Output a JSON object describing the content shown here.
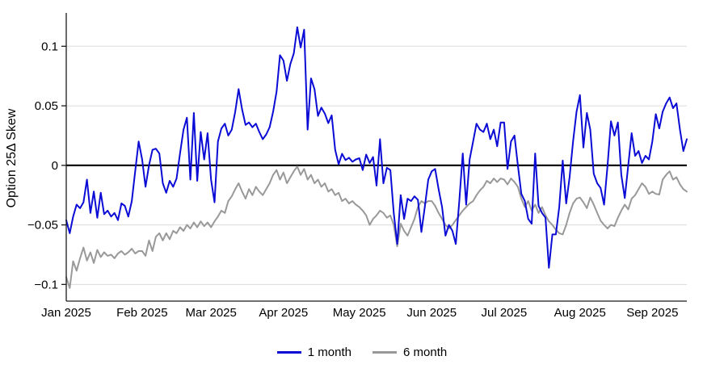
{
  "chart_data": {
    "type": "line",
    "title": "",
    "xlabel": "",
    "ylabel": "Option 25Δ Skew",
    "grid": "horizontal-light",
    "zero_line": true,
    "legend_position": "bottom-center",
    "background": "#ffffff",
    "grid_color": "#dcdcdc",
    "axis_color": "#1a1a1a",
    "zero_line_color": "#000000",
    "ylim": [
      -0.114,
      0.128
    ],
    "y_ticks": [
      0.1,
      0.05,
      0,
      -0.05,
      -0.1
    ],
    "y_tick_labels": [
      "0.1",
      "0.05",
      "0",
      "−0.05",
      "−0.1"
    ],
    "x_tick_labels": [
      "Jan 2025",
      "Feb 2025",
      "Mar 2025",
      "Apr 2025",
      "May 2025",
      "Jun 2025",
      "Jul 2025",
      "Aug 2025",
      "Sep 2025"
    ],
    "x_tick_indices": [
      0,
      22,
      42,
      63,
      85,
      106,
      127,
      149,
      170
    ],
    "n_points": 181,
    "series": [
      {
        "name": "1 month",
        "color": "#0b0bd6",
        "values": [
          -0.046,
          -0.057,
          -0.043,
          -0.033,
          -0.036,
          -0.031,
          -0.012,
          -0.04,
          -0.022,
          -0.044,
          -0.023,
          -0.041,
          -0.038,
          -0.043,
          -0.04,
          -0.046,
          -0.032,
          -0.034,
          -0.043,
          -0.03,
          -0.005,
          0.02,
          0.005,
          -0.018,
          0.0,
          0.013,
          0.014,
          0.01,
          -0.015,
          -0.023,
          -0.013,
          -0.018,
          -0.011,
          0.01,
          0.03,
          0.04,
          -0.012,
          0.044,
          -0.013,
          0.028,
          0.005,
          0.027,
          -0.012,
          -0.031,
          0.02,
          0.031,
          0.035,
          0.025,
          0.03,
          0.045,
          0.064,
          0.047,
          0.034,
          0.036,
          0.032,
          0.035,
          0.028,
          0.022,
          0.026,
          0.032,
          0.045,
          0.062,
          0.0925,
          0.088,
          0.071,
          0.085,
          0.094,
          0.116,
          0.099,
          0.114,
          0.03,
          0.073,
          0.064,
          0.0415,
          0.0485,
          0.0435,
          0.0355,
          0.042,
          0.013,
          0.001,
          0.0097,
          0.0044,
          0.0064,
          0.003,
          0.005,
          0.006,
          -0.004,
          0.009,
          0.002,
          0.007,
          -0.017,
          0.022,
          -0.015,
          -0.002,
          -0.004,
          -0.04,
          -0.066,
          -0.025,
          -0.045,
          -0.028,
          -0.03,
          -0.026,
          -0.029,
          -0.056,
          -0.035,
          -0.012,
          -0.005,
          -0.003,
          -0.02,
          -0.035,
          -0.059,
          -0.05,
          -0.055,
          -0.066,
          -0.03,
          0.01,
          -0.033,
          0.005,
          0.02,
          0.035,
          0.03,
          0.028,
          0.035,
          0.022,
          0.03,
          0.016,
          0.036,
          0.036,
          -0.003,
          0.02,
          0.025,
          0.0,
          -0.024,
          -0.03,
          -0.045,
          -0.049,
          0.01,
          -0.034,
          -0.04,
          -0.044,
          -0.086,
          -0.058,
          -0.058,
          -0.035,
          0.004,
          -0.032,
          -0.01,
          0.02,
          0.045,
          0.059,
          0.015,
          0.044,
          0.03,
          -0.007,
          -0.015,
          -0.019,
          -0.033,
          0.0,
          0.037,
          0.025,
          0.036,
          -0.008,
          -0.0275,
          0.0,
          0.027,
          0.008,
          0.012,
          0.002,
          0.008,
          0.005,
          0.02,
          0.043,
          0.031,
          0.045,
          0.052,
          0.057,
          0.048,
          0.052,
          0.03,
          0.012,
          0.022
        ]
      },
      {
        "name": "6 month",
        "color": "#999999",
        "values": [
          -0.094,
          -0.103,
          -0.0805,
          -0.0885,
          -0.078,
          -0.069,
          -0.08,
          -0.073,
          -0.082,
          -0.071,
          -0.077,
          -0.073,
          -0.076,
          -0.075,
          -0.078,
          -0.074,
          -0.072,
          -0.075,
          -0.073,
          -0.07,
          -0.074,
          -0.072,
          -0.072,
          -0.076,
          -0.063,
          -0.072,
          -0.06,
          -0.057,
          -0.063,
          -0.057,
          -0.062,
          -0.055,
          -0.057,
          -0.052,
          -0.055,
          -0.05,
          -0.053,
          -0.048,
          -0.052,
          -0.047,
          -0.051,
          -0.048,
          -0.052,
          -0.047,
          -0.043,
          -0.038,
          -0.04,
          -0.03,
          -0.026,
          -0.02,
          -0.015,
          -0.022,
          -0.028,
          -0.02,
          -0.025,
          -0.018,
          -0.022,
          -0.025,
          -0.02,
          -0.015,
          -0.008,
          -0.004,
          -0.012,
          -0.006,
          -0.015,
          -0.01,
          -0.005,
          -0.001,
          -0.008,
          -0.003,
          -0.012,
          -0.008,
          -0.015,
          -0.012,
          -0.018,
          -0.015,
          -0.022,
          -0.02,
          -0.025,
          -0.023,
          -0.03,
          -0.028,
          -0.032,
          -0.03,
          -0.033,
          -0.035,
          -0.038,
          -0.042,
          -0.05,
          -0.045,
          -0.042,
          -0.038,
          -0.04,
          -0.044,
          -0.042,
          -0.05,
          -0.068,
          -0.049,
          -0.055,
          -0.059,
          -0.052,
          -0.045,
          -0.035,
          -0.03,
          -0.032,
          -0.03,
          -0.03,
          -0.034,
          -0.04,
          -0.045,
          -0.05,
          -0.053,
          -0.05,
          -0.046,
          -0.042,
          -0.038,
          -0.035,
          -0.032,
          -0.03,
          -0.025,
          -0.021,
          -0.018,
          -0.013,
          -0.015,
          -0.011,
          -0.014,
          -0.011,
          -0.012,
          -0.016,
          -0.011,
          -0.014,
          -0.018,
          -0.028,
          -0.035,
          -0.03,
          -0.038,
          -0.033,
          -0.04,
          -0.035,
          -0.042,
          -0.047,
          -0.05,
          -0.054,
          -0.057,
          -0.058,
          -0.05,
          -0.04,
          -0.032,
          -0.028,
          -0.027,
          -0.031,
          -0.036,
          -0.027,
          -0.033,
          -0.04,
          -0.0465,
          -0.05,
          -0.053,
          -0.05,
          -0.051,
          -0.044,
          -0.038,
          -0.033,
          -0.037,
          -0.028,
          -0.025,
          -0.02,
          -0.015,
          -0.018,
          -0.024,
          -0.022,
          -0.024,
          -0.0245,
          -0.012,
          -0.008,
          -0.005,
          -0.012,
          -0.01,
          -0.016,
          -0.02,
          -0.022
        ]
      }
    ]
  }
}
